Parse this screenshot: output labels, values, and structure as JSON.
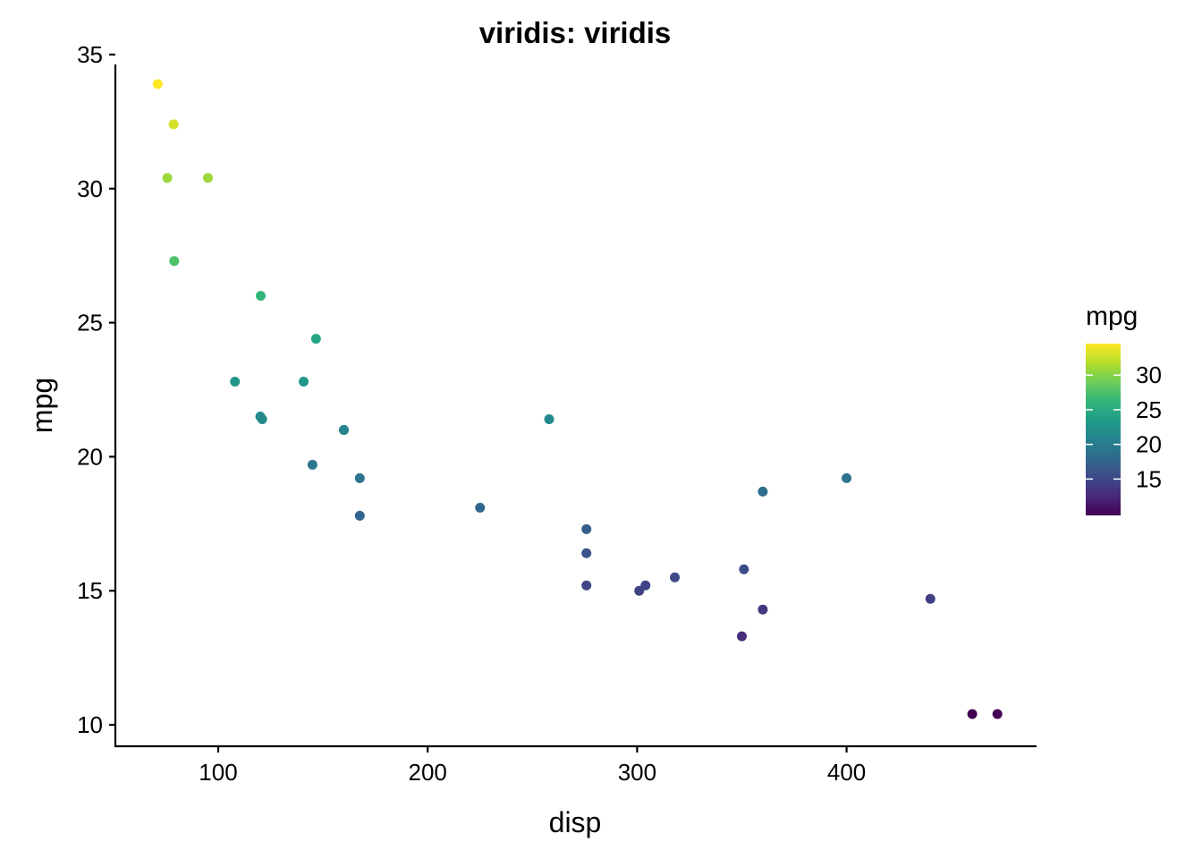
{
  "chart_data": {
    "type": "scatter",
    "title": "viridis: viridis",
    "xlabel": "disp",
    "ylabel": "mpg",
    "xlim": [
      50.9,
      490.7
    ],
    "ylim": [
      9.2,
      35.1
    ],
    "x_ticks": [
      100,
      200,
      300,
      400
    ],
    "y_ticks": [
      10,
      15,
      20,
      25,
      30,
      35
    ],
    "grid": false,
    "color_variable": "mpg",
    "colormap": "viridis",
    "legend": {
      "title": "mpg",
      "position": "right",
      "range": [
        10.4,
        33.9
      ],
      "ticks": [
        15,
        20,
        25,
        30
      ]
    },
    "points": [
      {
        "x": 160,
        "y": 21.0
      },
      {
        "x": 160,
        "y": 21.0
      },
      {
        "x": 108,
        "y": 22.8
      },
      {
        "x": 258,
        "y": 21.4
      },
      {
        "x": 360,
        "y": 18.7
      },
      {
        "x": 225,
        "y": 18.1
      },
      {
        "x": 360,
        "y": 14.3
      },
      {
        "x": 146.7,
        "y": 24.4
      },
      {
        "x": 140.8,
        "y": 22.8
      },
      {
        "x": 167.6,
        "y": 19.2
      },
      {
        "x": 167.6,
        "y": 17.8
      },
      {
        "x": 275.8,
        "y": 16.4
      },
      {
        "x": 275.8,
        "y": 17.3
      },
      {
        "x": 275.8,
        "y": 15.2
      },
      {
        "x": 472,
        "y": 10.4
      },
      {
        "x": 460,
        "y": 10.4
      },
      {
        "x": 440,
        "y": 14.7
      },
      {
        "x": 78.7,
        "y": 32.4
      },
      {
        "x": 75.7,
        "y": 30.4
      },
      {
        "x": 71.1,
        "y": 33.9
      },
      {
        "x": 120.1,
        "y": 21.5
      },
      {
        "x": 318,
        "y": 15.5
      },
      {
        "x": 304,
        "y": 15.2
      },
      {
        "x": 350,
        "y": 13.3
      },
      {
        "x": 400,
        "y": 19.2
      },
      {
        "x": 79,
        "y": 27.3
      },
      {
        "x": 120.3,
        "y": 26.0
      },
      {
        "x": 95.1,
        "y": 30.4
      },
      {
        "x": 351,
        "y": 15.8
      },
      {
        "x": 145,
        "y": 19.7
      },
      {
        "x": 301,
        "y": 15.0
      },
      {
        "x": 121,
        "y": 21.4
      }
    ]
  }
}
